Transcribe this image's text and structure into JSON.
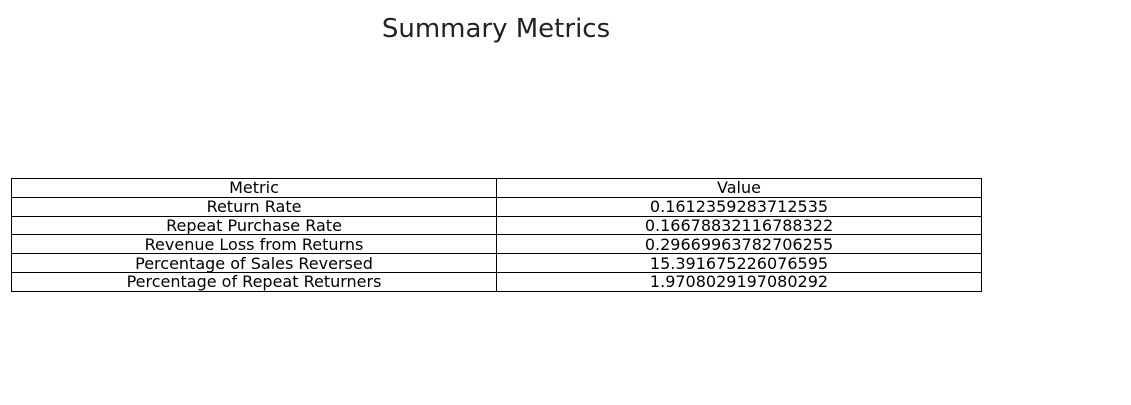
{
  "chart_data": {
    "type": "table",
    "title": "Summary Metrics",
    "columns": [
      "Metric",
      "Value"
    ],
    "rows": [
      [
        "Return Rate",
        "0.1612359283712535"
      ],
      [
        "Repeat Purchase Rate",
        "0.16678832116788322"
      ],
      [
        "Revenue Loss from Returns",
        "0.29669963782706255"
      ],
      [
        "Percentage of Sales Reversed",
        "15.391675226076595"
      ],
      [
        "Percentage of Repeat Returners",
        "1.9708029197080292"
      ]
    ]
  }
}
